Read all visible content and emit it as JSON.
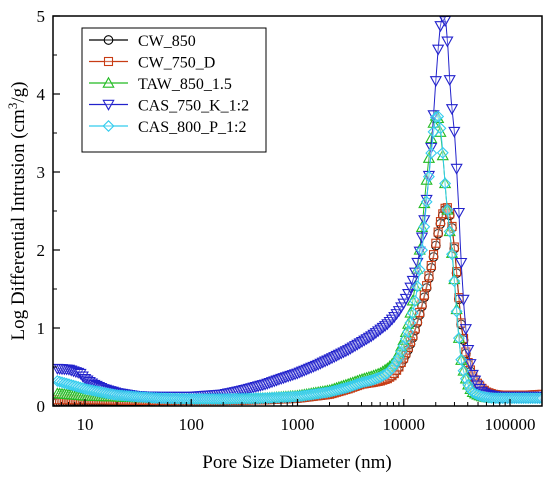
{
  "chart_data": {
    "type": "scatter",
    "title": "",
    "xlabel": "Pore Size Diameter (nm)",
    "ylabel_main": "Log Differential Intrusion (cm",
    "ylabel_sup": "3",
    "ylabel_tail": "/g)",
    "xscale": "log",
    "xlim": [
      5,
      200000
    ],
    "ylim": [
      0,
      5
    ],
    "xticks": [
      10,
      100,
      1000,
      10000,
      100000
    ],
    "xtick_labels": [
      "10",
      "100",
      "1000",
      "10000",
      "100000"
    ],
    "yticks": [
      0,
      1,
      2,
      3,
      4,
      5
    ],
    "ytick_labels": [
      "0",
      "1",
      "2",
      "3",
      "4",
      "5"
    ],
    "grid": false,
    "legend_position": "top-left",
    "series": [
      {
        "name": "CW_850",
        "color": "#000000",
        "marker": "circle",
        "x": [
          5.5,
          10,
          50,
          200,
          500,
          1000,
          2000,
          3000,
          4000,
          5000,
          6000,
          7000,
          8000,
          9000,
          10000,
          11000,
          12000,
          13000,
          14000,
          15000,
          16000,
          17000,
          18000,
          19000,
          20000,
          21000,
          22000,
          23000,
          24000,
          25000,
          26000,
          27000,
          28000,
          29000,
          30000,
          31000,
          32000,
          33000,
          34000,
          35000,
          37000,
          39000,
          41000,
          43000,
          45000,
          50000,
          55000,
          60000,
          70000,
          80000,
          100000,
          150000,
          200000
        ],
        "y": [
          0.05,
          0.06,
          0.07,
          0.08,
          0.09,
          0.1,
          0.15,
          0.22,
          0.28,
          0.3,
          0.32,
          0.35,
          0.4,
          0.5,
          0.6,
          0.72,
          0.85,
          1.0,
          1.15,
          1.3,
          1.45,
          1.6,
          1.75,
          1.9,
          2.05,
          2.2,
          2.32,
          2.42,
          2.5,
          2.53,
          2.52,
          2.45,
          2.35,
          2.2,
          2.0,
          1.8,
          1.58,
          1.38,
          1.18,
          1.0,
          0.8,
          0.62,
          0.5,
          0.42,
          0.35,
          0.26,
          0.2,
          0.16,
          0.13,
          0.12,
          0.11,
          0.1,
          0.1
        ]
      },
      {
        "name": "CW_750_D",
        "color": "#c83c14",
        "marker": "square",
        "x": [
          5.5,
          10,
          50,
          200,
          500,
          1000,
          2000,
          3000,
          4000,
          5000,
          6000,
          7000,
          8000,
          9000,
          10000,
          11000,
          12000,
          13000,
          14000,
          15000,
          16000,
          17000,
          18000,
          19000,
          20000,
          21000,
          22000,
          23000,
          24000,
          25000,
          26000,
          27000,
          28000,
          29000,
          30000,
          31000,
          32000,
          33000,
          34000,
          35000,
          37000,
          39000,
          41000,
          43000,
          45000,
          50000,
          55000,
          60000,
          70000,
          80000,
          100000,
          150000,
          200000
        ],
        "y": [
          0.08,
          0.08,
          0.07,
          0.07,
          0.08,
          0.1,
          0.15,
          0.22,
          0.28,
          0.3,
          0.32,
          0.35,
          0.4,
          0.5,
          0.62,
          0.75,
          0.88,
          1.02,
          1.18,
          1.33,
          1.48,
          1.63,
          1.78,
          1.93,
          2.08,
          2.22,
          2.35,
          2.44,
          2.52,
          2.55,
          2.54,
          2.47,
          2.37,
          2.22,
          2.02,
          1.82,
          1.6,
          1.4,
          1.2,
          1.02,
          0.82,
          0.64,
          0.52,
          0.44,
          0.37,
          0.28,
          0.22,
          0.18,
          0.15,
          0.14,
          0.14,
          0.14,
          0.15
        ]
      },
      {
        "name": "TAW_850_1.5",
        "color": "#22bb22",
        "marker": "triangle-up",
        "x": [
          5.5,
          10,
          50,
          200,
          500,
          1000,
          2000,
          3000,
          4000,
          5000,
          6000,
          7000,
          8000,
          9000,
          10000,
          11000,
          12000,
          13000,
          14000,
          15000,
          16000,
          17000,
          18000,
          19000,
          20000,
          21000,
          22000,
          23000,
          24000,
          25000,
          26000,
          27000,
          28000,
          29000,
          30000,
          31000,
          32000,
          33000,
          34000,
          35000,
          37000,
          39000,
          41000,
          43000,
          45000,
          50000,
          55000,
          60000,
          70000,
          80000,
          100000,
          150000,
          200000
        ],
        "y": [
          0.16,
          0.13,
          0.1,
          0.09,
          0.1,
          0.13,
          0.2,
          0.28,
          0.34,
          0.38,
          0.42,
          0.48,
          0.55,
          0.68,
          0.85,
          1.05,
          1.3,
          1.6,
          1.95,
          2.35,
          2.75,
          3.1,
          3.4,
          3.62,
          3.72,
          3.7,
          3.55,
          3.3,
          3.0,
          2.7,
          2.45,
          2.25,
          2.05,
          1.85,
          1.6,
          1.35,
          1.1,
          0.88,
          0.7,
          0.55,
          0.42,
          0.32,
          0.25,
          0.2,
          0.17,
          0.14,
          0.12,
          0.11,
          0.1,
          0.1,
          0.1,
          0.1,
          0.1
        ]
      },
      {
        "name": "CAS_750_K_1:2",
        "color": "#2222cc",
        "marker": "triangle-down",
        "x": [
          5.5,
          7,
          9,
          10,
          12,
          15,
          20,
          30,
          50,
          100,
          200,
          300,
          500,
          700,
          1000,
          1500,
          2000,
          3000,
          4000,
          5000,
          6000,
          7000,
          8000,
          9000,
          10000,
          11000,
          12000,
          13000,
          14000,
          15000,
          16000,
          17000,
          18000,
          19000,
          20000,
          21000,
          22000,
          23000,
          24000,
          25000,
          26000,
          27000,
          28000,
          29000,
          30000,
          31000,
          32000,
          33000,
          34000,
          35000,
          37000,
          39000,
          41000,
          43000,
          45000,
          50000,
          55000,
          60000,
          70000,
          80000,
          100000,
          150000,
          200000
        ],
        "y": [
          0.48,
          0.47,
          0.42,
          0.35,
          0.28,
          0.22,
          0.17,
          0.13,
          0.12,
          0.12,
          0.15,
          0.2,
          0.28,
          0.35,
          0.42,
          0.52,
          0.6,
          0.72,
          0.82,
          0.9,
          0.98,
          1.05,
          1.13,
          1.22,
          1.32,
          1.44,
          1.58,
          1.75,
          1.95,
          2.2,
          2.5,
          2.85,
          3.25,
          3.7,
          4.15,
          4.55,
          4.85,
          5.0,
          4.98,
          4.9,
          4.6,
          4.2,
          3.9,
          3.7,
          3.5,
          3.2,
          2.85,
          2.5,
          2.1,
          1.75,
          1.25,
          0.88,
          0.65,
          0.5,
          0.38,
          0.25,
          0.18,
          0.15,
          0.13,
          0.12,
          0.12,
          0.12,
          0.12
        ]
      },
      {
        "name": "CAS_800_P_1:2",
        "color": "#33ccee",
        "marker": "diamond",
        "x": [
          5.5,
          7,
          10,
          15,
          20,
          30,
          50,
          100,
          200,
          500,
          1000,
          2000,
          3000,
          4000,
          5000,
          6000,
          7000,
          8000,
          9000,
          10000,
          11000,
          12000,
          13000,
          14000,
          15000,
          16000,
          17000,
          18000,
          19000,
          20000,
          21000,
          22000,
          23000,
          24000,
          25000,
          26000,
          27000,
          28000,
          29000,
          30000,
          31000,
          32000,
          33000,
          34000,
          35000,
          37000,
          39000,
          41000,
          43000,
          45000,
          50000,
          55000,
          60000,
          70000,
          80000,
          100000,
          150000,
          200000
        ],
        "y": [
          0.32,
          0.28,
          0.22,
          0.17,
          0.14,
          0.12,
          0.1,
          0.09,
          0.09,
          0.1,
          0.12,
          0.18,
          0.24,
          0.3,
          0.33,
          0.37,
          0.42,
          0.5,
          0.62,
          0.78,
          0.95,
          1.15,
          1.4,
          1.7,
          2.05,
          2.45,
          2.85,
          3.2,
          3.5,
          3.7,
          3.72,
          3.6,
          3.35,
          3.0,
          2.7,
          2.45,
          2.25,
          2.05,
          1.82,
          1.58,
          1.32,
          1.08,
          0.88,
          0.7,
          0.56,
          0.42,
          0.32,
          0.25,
          0.2,
          0.17,
          0.14,
          0.12,
          0.11,
          0.1,
          0.1,
          0.1,
          0.1,
          0.1
        ]
      }
    ]
  }
}
